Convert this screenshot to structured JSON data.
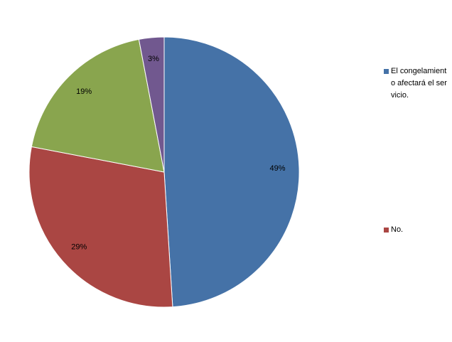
{
  "chart_data": {
    "type": "pie",
    "slices": [
      {
        "name": "El congelamiento afectará el servicio.",
        "value": 49,
        "label": "49%",
        "color": "#4572A7"
      },
      {
        "name": "No.",
        "value": 29,
        "label": "29%",
        "color": "#AA4643"
      },
      {
        "name": "",
        "value": 19,
        "label": "19%",
        "color": "#89A54E"
      },
      {
        "name": "",
        "value": 3,
        "label": "3%",
        "color": "#71588F"
      }
    ],
    "legend": {
      "placement": "right",
      "entries": [
        {
          "text": "El congelamiento afectará el servicio.",
          "color": "#4572A7"
        },
        {
          "text": "No.",
          "color": "#AA4643"
        }
      ]
    }
  }
}
